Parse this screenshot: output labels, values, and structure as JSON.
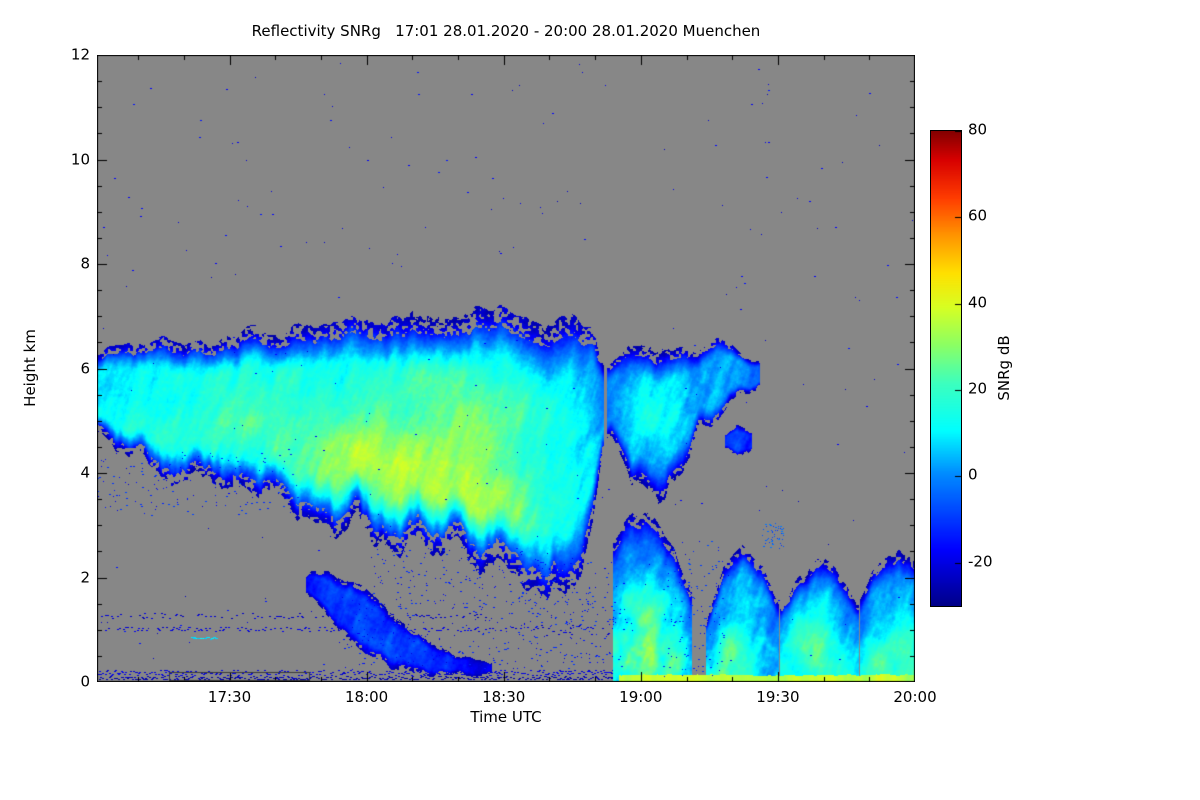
{
  "chart_data": {
    "type": "heatmap",
    "title": "Reflectivity SNRg   17:01 28.01.2020 - 20:00 28.01.2020 Muenchen",
    "xlabel": "Time UTC",
    "ylabel": "Height km",
    "x_ticks": [
      "17:30",
      "18:00",
      "18:30",
      "19:00",
      "19:30",
      "20:00"
    ],
    "x_range_hours": [
      17.0167,
      20.0
    ],
    "y_ticks": [
      0,
      2,
      4,
      6,
      8,
      10,
      12
    ],
    "y_range_km": [
      0,
      12
    ],
    "background": "#878787",
    "frame_color": "#000000",
    "colorbar": {
      "label": "SNRg dB",
      "ticks": [
        80,
        60,
        40,
        20,
        0,
        -20
      ],
      "range": [
        -30,
        80
      ]
    },
    "colormap": [
      [
        0.0,
        0,
        0,
        135
      ],
      [
        0.12,
        0,
        0,
        255
      ],
      [
        0.28,
        0,
        140,
        255
      ],
      [
        0.37,
        0,
        255,
        255
      ],
      [
        0.47,
        60,
        255,
        190
      ],
      [
        0.55,
        140,
        255,
        100
      ],
      [
        0.63,
        215,
        255,
        35
      ],
      [
        0.7,
        255,
        225,
        0
      ],
      [
        0.78,
        255,
        150,
        0
      ],
      [
        0.86,
        255,
        60,
        0
      ],
      [
        0.94,
        215,
        0,
        0
      ],
      [
        1.0,
        132,
        0,
        0
      ]
    ],
    "features": [
      {
        "name": "main-cloud",
        "seed": 11,
        "baseJit": 1.0,
        "topJit": 0.6,
        "grad": 0,
        "profile": [
          {
            "t": 17.02,
            "base": 4.9,
            "top": 6.25,
            "v": 6
          },
          {
            "t": 17.12,
            "base": 4.25,
            "top": 6.35,
            "v": 9
          },
          {
            "t": 17.3,
            "base": 4.0,
            "top": 6.55,
            "v": 11
          },
          {
            "t": 17.5,
            "base": 3.7,
            "top": 6.65,
            "v": 12
          },
          {
            "t": 17.7,
            "base": 3.35,
            "top": 6.8,
            "v": 13
          },
          {
            "t": 17.9,
            "base": 3.05,
            "top": 6.85,
            "v": 14
          },
          {
            "t": 18.1,
            "base": 2.75,
            "top": 6.95,
            "v": 15
          },
          {
            "t": 18.3,
            "base": 2.45,
            "top": 7.0,
            "v": 15
          },
          {
            "t": 18.5,
            "base": 2.15,
            "top": 6.95,
            "v": 15
          },
          {
            "t": 18.65,
            "base": 1.75,
            "top": 6.9,
            "v": 13
          },
          {
            "t": 18.75,
            "base": 1.65,
            "top": 6.85,
            "v": 11
          },
          {
            "t": 18.82,
            "base": 2.9,
            "top": 6.6,
            "v": 6
          },
          {
            "t": 18.86,
            "base": 4.3,
            "top": 6.2,
            "v": 0
          }
        ]
      },
      {
        "name": "upper-cloud-2",
        "seed": 23,
        "baseJit": 0.8,
        "topJit": 0.5,
        "grad": 0,
        "profile": [
          {
            "t": 18.88,
            "base": 4.7,
            "top": 6.15,
            "v": -2
          },
          {
            "t": 18.97,
            "base": 3.95,
            "top": 6.4,
            "v": 3
          },
          {
            "t": 19.07,
            "base": 3.6,
            "top": 6.5,
            "v": 6
          },
          {
            "t": 19.15,
            "base": 3.95,
            "top": 6.45,
            "v": 4
          },
          {
            "t": 19.21,
            "base": 4.8,
            "top": 6.35,
            "v": -1
          },
          {
            "t": 19.27,
            "base": 5.15,
            "top": 6.45,
            "v": 3
          },
          {
            "t": 19.36,
            "base": 5.35,
            "top": 6.4,
            "v": 1
          },
          {
            "t": 19.43,
            "base": 5.75,
            "top": 6.15,
            "v": -8
          }
        ]
      },
      {
        "name": "precip-shaft",
        "seed": 37,
        "baseJit": 0.05,
        "topJit": 0.5,
        "grad": 42,
        "flatBottom": true,
        "profile": [
          {
            "t": 18.9,
            "base": 0.0,
            "top": 2.7,
            "v": -8
          },
          {
            "t": 18.97,
            "base": 0.0,
            "top": 3.3,
            "v": -6
          },
          {
            "t": 19.05,
            "base": 0.0,
            "top": 3.1,
            "v": -4
          },
          {
            "t": 19.12,
            "base": 0.0,
            "top": 2.7,
            "v": -7
          },
          {
            "t": 19.18,
            "base": 0.0,
            "top": 1.6,
            "v": -12
          }
        ]
      },
      {
        "name": "mid-low-cloud",
        "seed": 51,
        "baseJit": 0.3,
        "topJit": 0.35,
        "grad": 0,
        "profile": [
          {
            "t": 17.78,
            "base": 1.6,
            "top": 2.05,
            "v": -14
          },
          {
            "t": 17.86,
            "base": 1.25,
            "top": 2.1,
            "v": -9
          },
          {
            "t": 17.94,
            "base": 0.75,
            "top": 2.0,
            "v": -7
          },
          {
            "t": 18.02,
            "base": 0.4,
            "top": 1.7,
            "v": -7
          },
          {
            "t": 18.1,
            "base": 0.28,
            "top": 1.25,
            "v": -9
          },
          {
            "t": 18.2,
            "base": 0.22,
            "top": 0.8,
            "v": -12
          },
          {
            "t": 18.32,
            "base": 0.18,
            "top": 0.5,
            "v": -16
          },
          {
            "t": 18.45,
            "base": 0.15,
            "top": 0.35,
            "v": -19
          }
        ]
      },
      {
        "name": "low-cloud-a",
        "seed": 67,
        "flatBottom": true,
        "baseJit": 0.1,
        "topJit": 0.5,
        "grad": 22,
        "profile": [
          {
            "t": 19.24,
            "base": 0.05,
            "top": 1.1,
            "v": -8
          },
          {
            "t": 19.3,
            "base": 0.03,
            "top": 2.1,
            "v": -2
          },
          {
            "t": 19.37,
            "base": 0.03,
            "top": 2.55,
            "v": 0
          },
          {
            "t": 19.44,
            "base": 0.05,
            "top": 2.2,
            "v": -3
          },
          {
            "t": 19.5,
            "base": 0.1,
            "top": 1.5,
            "v": -7
          }
        ]
      },
      {
        "name": "low-cloud-b",
        "seed": 73,
        "flatBottom": true,
        "baseJit": 0.1,
        "topJit": 0.5,
        "grad": 22,
        "profile": [
          {
            "t": 19.51,
            "base": 0.05,
            "top": 1.5,
            "v": -7
          },
          {
            "t": 19.58,
            "base": 0.03,
            "top": 2.05,
            "v": -2
          },
          {
            "t": 19.66,
            "base": 0.03,
            "top": 2.35,
            "v": 0
          },
          {
            "t": 19.73,
            "base": 0.05,
            "top": 2.0,
            "v": -2
          },
          {
            "t": 19.79,
            "base": 0.08,
            "top": 1.5,
            "v": -5
          }
        ]
      },
      {
        "name": "low-cloud-c",
        "seed": 81,
        "flatBottom": true,
        "baseJit": 0.1,
        "topJit": 0.5,
        "grad": 22,
        "profile": [
          {
            "t": 19.8,
            "base": 0.05,
            "top": 1.7,
            "v": -4
          },
          {
            "t": 19.87,
            "base": 0.03,
            "top": 2.35,
            "v": 0
          },
          {
            "t": 19.94,
            "base": 0.03,
            "top": 2.6,
            "v": 1
          },
          {
            "t": 20.0,
            "base": 0.05,
            "top": 2.3,
            "v": -1
          }
        ]
      },
      {
        "name": "small-blob",
        "seed": 91,
        "baseJit": 0.15,
        "topJit": 0.15,
        "grad": 0,
        "profile": [
          {
            "t": 19.31,
            "base": 4.45,
            "top": 4.75,
            "v": -12
          },
          {
            "t": 19.35,
            "base": 4.3,
            "top": 4.95,
            "v": -9
          },
          {
            "t": 19.4,
            "base": 4.45,
            "top": 4.8,
            "v": -13
          }
        ]
      }
    ],
    "cores": [
      {
        "t": 18.25,
        "h": 3.8,
        "tw": 0.38,
        "hw": 1.1,
        "boost": 16
      },
      {
        "t": 17.95,
        "h": 4.4,
        "tw": 0.25,
        "hw": 0.9,
        "boost": 10
      },
      {
        "t": 17.55,
        "h": 4.8,
        "tw": 0.3,
        "hw": 0.8,
        "boost": 9
      },
      {
        "t": 18.45,
        "h": 2.9,
        "tw": 0.13,
        "hw": 0.7,
        "boost": 15
      },
      {
        "t": 17.15,
        "h": 4.9,
        "tw": 0.15,
        "hw": 0.5,
        "boost": 7
      },
      {
        "t": 18.3,
        "h": 5.3,
        "tw": 0.3,
        "hw": 0.8,
        "boost": 8
      },
      {
        "t": 19.05,
        "h": 5.2,
        "tw": 0.12,
        "hw": 0.7,
        "boost": 8
      },
      {
        "t": 19.02,
        "h": 0.9,
        "tw": 0.05,
        "hw": 0.9,
        "boost": 10
      },
      {
        "t": 19.33,
        "h": 0.6,
        "tw": 0.06,
        "hw": 0.45,
        "boost": 14
      },
      {
        "t": 19.62,
        "h": 0.8,
        "tw": 0.07,
        "hw": 0.5,
        "boost": 12
      },
      {
        "t": 19.9,
        "h": 0.5,
        "tw": 0.08,
        "hw": 0.4,
        "boost": 8
      }
    ],
    "speckle_lines": [
      {
        "h": 1.02,
        "t0": 17.02,
        "t1": 18.62,
        "v": -20,
        "density": 0.3,
        "jitter": 0.04
      },
      {
        "h": 1.27,
        "t0": 17.02,
        "t1": 18.45,
        "v": -22,
        "density": 0.22,
        "jitter": 0.05
      },
      {
        "h": 0.18,
        "t0": 17.02,
        "t1": 18.92,
        "v": -20,
        "density": 0.55,
        "jitter": 0.05
      },
      {
        "h": 0.08,
        "t0": 17.02,
        "t1": 18.92,
        "v": -25,
        "density": 0.6,
        "jitter": 0.03
      },
      {
        "h": 0.85,
        "t0": 17.36,
        "t1": 17.45,
        "v": 8,
        "density": 0.85,
        "jitter": 0.02
      },
      {
        "h": 0.05,
        "t0": 19.15,
        "t1": 19.65,
        "v": -28,
        "density": 0.8,
        "jitter": 0.02
      },
      {
        "h": 1.0,
        "t0": 18.62,
        "t1": 18.95,
        "v": -22,
        "density": 0.35,
        "jitter": 0.12
      }
    ],
    "dot_regions": [
      {
        "t0": 17.0,
        "t1": 17.75,
        "h0": 3.2,
        "h1": 4.4,
        "count": 150,
        "v": -14,
        "vs": 6
      },
      {
        "t0": 17.9,
        "t1": 18.95,
        "h0": 0.25,
        "h1": 1.6,
        "count": 300,
        "v": -16,
        "vs": 6
      },
      {
        "t0": 18.0,
        "t1": 18.65,
        "h0": 1.5,
        "h1": 2.6,
        "count": 150,
        "v": -15,
        "vs": 5
      },
      {
        "t0": 19.08,
        "t1": 19.3,
        "h0": 0.1,
        "h1": 2.7,
        "count": 130,
        "v": -13,
        "vs": 6
      },
      {
        "t0": 17.0,
        "t1": 20.0,
        "h0": 0.3,
        "h1": 11.9,
        "count": 260,
        "v": -19,
        "vs": 5
      },
      {
        "t0": 18.55,
        "t1": 18.92,
        "h0": 0.9,
        "h1": 2.3,
        "count": 90,
        "v": -14,
        "vs": 5
      },
      {
        "t0": 19.44,
        "t1": 19.52,
        "h0": 2.55,
        "h1": 3.05,
        "count": 50,
        "v": -6,
        "vs": 5
      }
    ],
    "ground_clutter": {
      "t0": 18.92,
      "t1": 20.0,
      "h": 0.12,
      "v": 36
    },
    "artifacts": {
      "empty_box": {
        "t0": 17.28,
        "t1": 17.79,
        "h0": 0.04,
        "h1": 0.19
      }
    }
  }
}
